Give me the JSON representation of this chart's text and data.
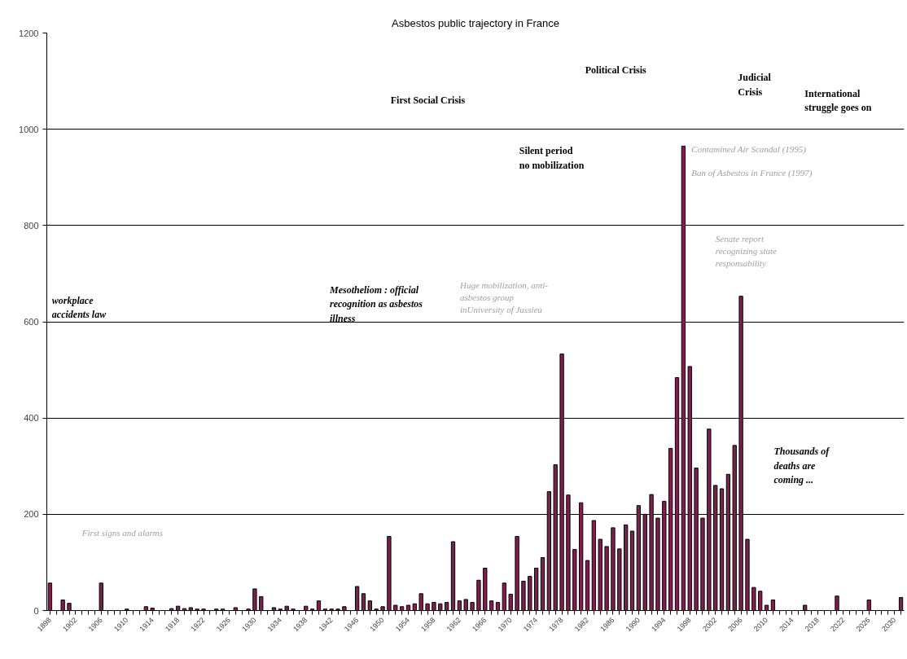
{
  "chart_data": {
    "type": "bar",
    "title": "Asbestos public trajectory in France",
    "categories": [
      "1898",
      null,
      null,
      null,
      "1902",
      null,
      null,
      null,
      "1906",
      null,
      null,
      null,
      "1910",
      null,
      null,
      null,
      "1914",
      null,
      null,
      null,
      "1918",
      null,
      null,
      null,
      "1922",
      null,
      null,
      null,
      "1926",
      null,
      null,
      null,
      "1930",
      null,
      null,
      null,
      "1934",
      null,
      null,
      null,
      "1938",
      null,
      null,
      null,
      "1942",
      null,
      null,
      null,
      "1946",
      null,
      null,
      null,
      "1950",
      null,
      null,
      null,
      "1954",
      null,
      null,
      null,
      "1958",
      null,
      null,
      null,
      "1962",
      null,
      null,
      null,
      "1966",
      null,
      null,
      null,
      "1970",
      null,
      null,
      null,
      "1974",
      null,
      null,
      null,
      "1978",
      null,
      null,
      null,
      "1982",
      null,
      null,
      null,
      "1986",
      null,
      null,
      null,
      "1990",
      null,
      null,
      null,
      "1994",
      null,
      null,
      null,
      "1998",
      null,
      null,
      null,
      "2002",
      null,
      null,
      null,
      "2006",
      null,
      null,
      null,
      "2010",
      null,
      null,
      null,
      "2014",
      null,
      null,
      null,
      "2018",
      null,
      null,
      null,
      "2022",
      null,
      null,
      null,
      "2026",
      null,
      null,
      null,
      "2030",
      null
    ],
    "values": [
      57,
      null,
      22,
      15,
      null,
      null,
      null,
      null,
      57,
      null,
      null,
      null,
      3,
      null,
      null,
      8,
      5,
      null,
      null,
      4,
      9,
      4,
      6,
      3,
      3,
      null,
      3,
      3,
      null,
      6,
      null,
      3,
      45,
      29,
      null,
      6,
      3,
      9,
      3,
      null,
      9,
      3,
      20,
      3,
      3,
      3,
      8,
      null,
      50,
      35,
      20,
      3,
      8,
      154,
      11,
      8,
      11,
      14,
      35,
      14,
      17,
      14,
      17,
      143,
      20,
      23,
      17,
      63,
      88,
      20,
      17,
      57,
      34,
      154,
      61,
      71,
      88,
      110,
      247,
      303,
      533,
      240,
      127,
      224,
      104,
      187,
      148,
      133,
      172,
      128,
      178,
      165,
      218,
      200,
      241,
      192,
      227,
      337,
      484,
      965,
      507,
      296,
      192,
      377,
      260,
      253,
      283,
      343,
      653,
      148,
      48,
      40,
      11,
      22,
      null,
      null,
      null,
      null,
      11,
      null,
      null,
      null,
      null,
      30,
      null,
      null,
      null,
      null,
      22,
      null,
      null,
      null,
      null,
      27
    ],
    "color": "#7f1f4f",
    "ylim": [
      0,
      1200
    ],
    "yticks": [
      0,
      200,
      400,
      600,
      800,
      1000,
      1200
    ],
    "grid": "y",
    "annotations": [
      "workplace\naccidents law",
      "First signs and alarms",
      "Mesotheliom : official\nrecognition as asbestos\nillness",
      "First Social Crisis",
      "Silent period\nno mobilization",
      "Huge mobilization, anti-\nasbestos group\ninUniversity of Jussieu",
      "Political Crisis",
      "Contamined Air Scandal (1995)",
      "Ban of Asbestos in France (1997)",
      "Judicial\nCrisis",
      "International\nstruggle goes on",
      "Senate report\nrecognizing state\nresponsability",
      "Thousands of\ndeaths are\ncoming ..."
    ]
  }
}
